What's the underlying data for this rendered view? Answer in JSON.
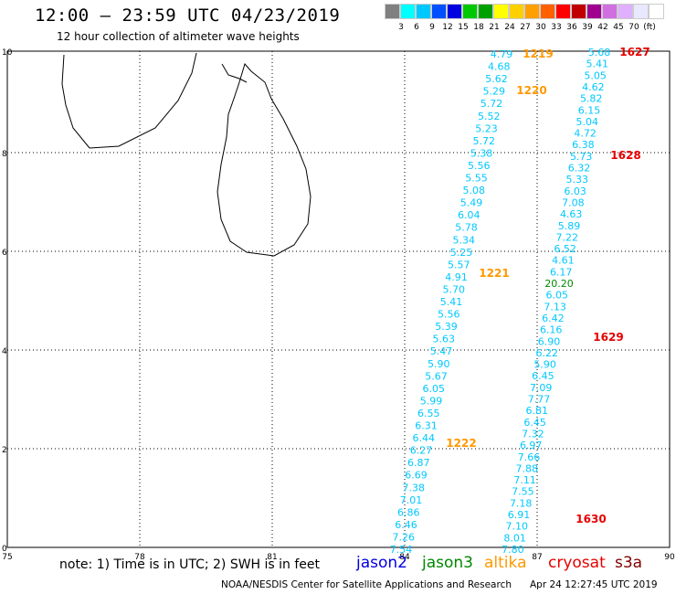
{
  "header": {
    "title": "12:00 – 23:59 UTC 04/23/2019",
    "subtitle": "12 hour collection of altimeter wave heights"
  },
  "legend": {
    "colors": [
      "#808080",
      "#00ffff",
      "#00c8ff",
      "#0050ff",
      "#0000e0",
      "#00c800",
      "#00a000",
      "#ffff00",
      "#ffd000",
      "#ffa000",
      "#ff6000",
      "#ff0000",
      "#c00000",
      "#a00090",
      "#d070e0",
      "#e0b0ff",
      "#e8e8ff",
      "#ffffff"
    ],
    "labels": [
      "3",
      "6",
      "9",
      "12",
      "15",
      "18",
      "21",
      "24",
      "27",
      "30",
      "33",
      "36",
      "39",
      "42",
      "45",
      "70",
      "(ft)"
    ]
  },
  "axes": {
    "x_ticks": [
      "75",
      "78",
      "81",
      "84",
      "87",
      "90"
    ],
    "y_ticks": [
      "0",
      "2",
      "4",
      "6",
      "8",
      "10"
    ]
  },
  "colors": {
    "swh": "#00c8ff",
    "time_orange": "#ff9900",
    "time_red": "#e60000",
    "jason2": "#0000e0",
    "jason3": "#008800",
    "altika": "#ff9900",
    "cryosat": "#e60000",
    "s3a": "#800000"
  },
  "track_a": {
    "values": [
      "4.79",
      "4.68",
      "5.62",
      "5.29",
      "5.72",
      "5.52",
      "5.23",
      "5.72",
      "5.38",
      "5.56",
      "5.55",
      "5.08",
      "5.49",
      "6.04",
      "5.78",
      "5.34",
      "5.25",
      "5.57",
      "4.91",
      "5.70",
      "5.41",
      "5.56",
      "5.39",
      "5.63",
      "5.47",
      "5.90",
      "5.67",
      "6.05",
      "5.99",
      "6.55",
      "6.31",
      "6.44",
      "6.27",
      "6.87",
      "6.69",
      "7.38",
      "7.01",
      "6.86",
      "6.46",
      "7.26",
      "7.54"
    ],
    "times": [
      "1219",
      "1220",
      "1221",
      "1222"
    ]
  },
  "track_b": {
    "values": [
      "5.68",
      "5.41",
      "5.05",
      "4.62",
      "5.82",
      "6.15",
      "5.04",
      "4.72",
      "6.38",
      "5.73",
      "6.32",
      "5.33",
      "6.03",
      "7.08",
      "4.63",
      "5.89",
      "7.22",
      "6.52",
      "4.61",
      "6.17",
      "20.20",
      "6.05",
      "7.13",
      "6.42",
      "6.16",
      "6.90",
      "6.22",
      "5.90",
      "6.45",
      "7.09",
      "7.77",
      "6.81",
      "6.45",
      "7.32",
      "6.97",
      "7.66",
      "7.88",
      "7.11",
      "7.55",
      "7.18",
      "6.91",
      "7.10",
      "8.01",
      "7.80"
    ],
    "times": [
      "1627",
      "1628",
      "1629",
      "1630"
    ]
  },
  "footer": {
    "note": "note: 1) Time is in UTC; 2) SWH is in feet",
    "satellites": [
      "jason2",
      "jason3",
      "altika",
      "cryosat",
      "s3a"
    ],
    "credit": "NOAA/NESDIS Center for Satellite Applications and Research",
    "timestamp": "Apr 24 12:27:45 UTC 2019"
  }
}
